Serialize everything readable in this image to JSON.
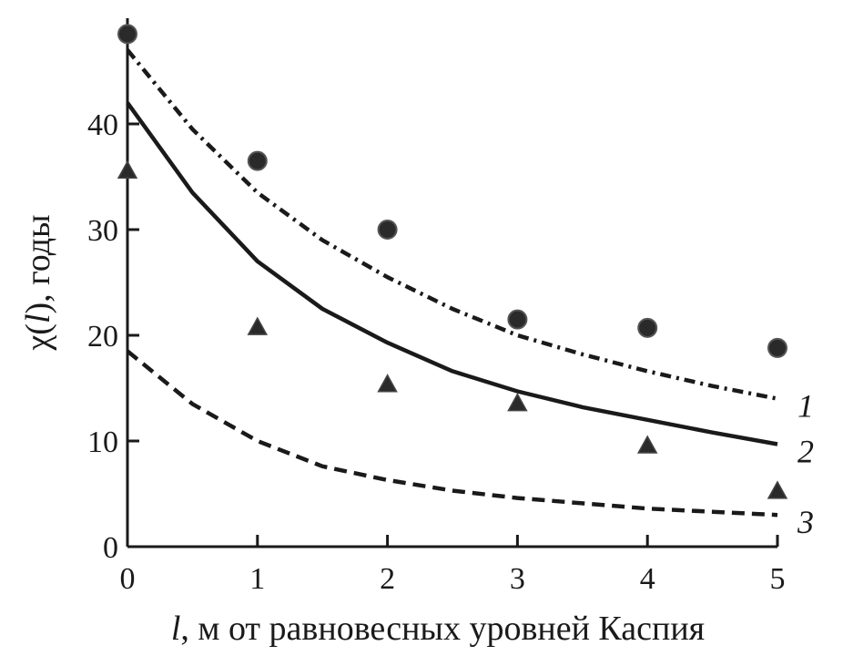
{
  "chart_data": {
    "type": "scatter",
    "xlabel": {
      "var": "l",
      "rest": ", м от равновесных уровней Каспия"
    },
    "ylabel": {
      "pre": "χ(",
      "var": "l",
      "post": "),   годы"
    },
    "xlim": [
      0,
      5
    ],
    "ylim": [
      0,
      50
    ],
    "x_ticks": [
      0,
      1,
      2,
      3,
      4,
      5
    ],
    "y_ticks": [
      0,
      10,
      20,
      30,
      40
    ],
    "grid": false,
    "series": [
      {
        "name": "1",
        "kind": "line",
        "style": "dash-dot",
        "x": [
          0,
          0.5,
          1,
          1.5,
          2,
          2.5,
          3,
          3.5,
          4,
          4.5,
          5
        ],
        "y": [
          47,
          39.5,
          33.5,
          29,
          25.5,
          22.5,
          20,
          18.2,
          16.6,
          15.2,
          14
        ]
      },
      {
        "name": "2",
        "kind": "line",
        "style": "solid",
        "x": [
          0,
          0.5,
          1,
          1.5,
          2,
          2.5,
          3,
          3.5,
          4,
          4.5,
          5
        ],
        "y": [
          42,
          33.5,
          27,
          22.5,
          19.3,
          16.6,
          14.7,
          13.2,
          12,
          10.8,
          9.7
        ]
      },
      {
        "name": "3",
        "kind": "line",
        "style": "dashed",
        "x": [
          0,
          0.5,
          1,
          1.5,
          2,
          2.5,
          3,
          3.5,
          4,
          4.5,
          5
        ],
        "y": [
          18.5,
          13.5,
          10,
          7.6,
          6.3,
          5.3,
          4.6,
          4.1,
          3.6,
          3.3,
          3.0
        ]
      },
      {
        "kind": "points",
        "marker": "circle",
        "x": [
          0,
          1,
          2,
          3,
          4,
          5
        ],
        "y": [
          48.5,
          36.5,
          30,
          21.5,
          20.7,
          18.8
        ]
      },
      {
        "kind": "points",
        "marker": "triangle",
        "x": [
          0,
          1,
          2,
          3,
          4,
          5
        ],
        "y": [
          35.5,
          20.7,
          15.3,
          13.5,
          9.5,
          5.2
        ]
      }
    ]
  }
}
